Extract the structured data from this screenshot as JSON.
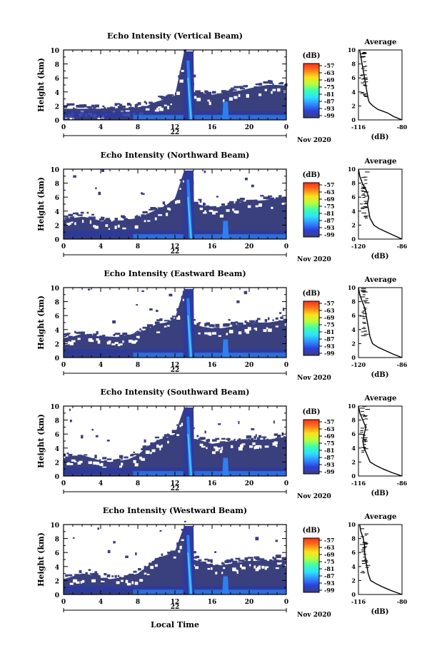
{
  "common": {
    "ylabel": "Height (km)",
    "x_ticks": [
      "0",
      "4",
      "8",
      "12",
      "16",
      "20",
      "0"
    ],
    "y_ticks": [
      "0",
      "2",
      "4",
      "6",
      "8",
      "10"
    ],
    "date_day": "22",
    "date_month_year": "Nov 2020",
    "xlabel": "Local Time",
    "colorbar_unit": "(dB)",
    "colorbar_ticks": [
      "-57",
      "-63",
      "-69",
      "-75",
      "-81",
      "-87",
      "-93",
      "-99"
    ],
    "avg_title": "Average",
    "avg_xlabel": "(dB)",
    "colors": {
      "fill": "#3a3f7e",
      "low": "#2e3a9c",
      "mid": "#2f7ff0",
      "core": "#3ad0ff",
      "colorbar": [
        "#ff2a1a",
        "#ff7a1a",
        "#ffe01a",
        "#b8ff3a",
        "#3affb0",
        "#2ee0ff",
        "#2f8cff",
        "#2d3fd8",
        "#3a3f7e"
      ]
    }
  },
  "chart_data": [
    {
      "type": "heatmap",
      "title": "Echo Intensity (Vertical Beam)",
      "x_range": [
        0,
        24
      ],
      "y_range": [
        0,
        10
      ],
      "colorbar_range": [
        -99,
        -57
      ],
      "echo_top_km": [
        1.6,
        1.6,
        1.6,
        1.6,
        1.6,
        1.6,
        1.7,
        1.7,
        1.8,
        2.0,
        2.6,
        3.0,
        3.5,
        9.8,
        4.0,
        3.8,
        3.6,
        3.8,
        4.0,
        4.2,
        4.5,
        4.8,
        5.0,
        5.0,
        4.9
      ],
      "avg_profile": {
        "xticks": [
          "-116",
          "-80"
        ],
        "x_range": [
          -116,
          -80
        ],
        "heights_km": [
          0,
          0.5,
          1,
          1.5,
          2,
          2.5,
          3,
          4,
          5,
          6,
          7,
          8,
          9,
          10
        ],
        "values_db": [
          -80,
          -87,
          -92,
          -100,
          -104,
          -107,
          -108,
          -109,
          -110,
          -111,
          -112,
          -113,
          -114,
          -115
        ]
      }
    },
    {
      "type": "heatmap",
      "title": "Echo Intensity (Northward Beam)",
      "x_range": [
        0,
        24
      ],
      "y_range": [
        0,
        10
      ],
      "colorbar_range": [
        -99,
        -57
      ],
      "echo_top_km": [
        2.8,
        3.0,
        3.2,
        3.0,
        2.6,
        2.5,
        2.6,
        2.8,
        3.0,
        3.6,
        4.2,
        4.8,
        5.8,
        9.8,
        5.2,
        4.8,
        4.5,
        4.6,
        5.0,
        5.2,
        5.5,
        5.5,
        5.6,
        5.8,
        6.0
      ],
      "avg_profile": {
        "xticks": [
          "-120",
          "-86"
        ],
        "x_range": [
          -120,
          -86
        ],
        "heights_km": [
          0,
          0.5,
          1,
          1.5,
          2,
          3,
          4,
          5,
          6,
          7,
          8,
          9,
          10
        ],
        "values_db": [
          -86,
          -92,
          -98,
          -104,
          -108,
          -111,
          -112,
          -113,
          -112,
          -114,
          -117,
          -119,
          -120
        ]
      }
    },
    {
      "type": "heatmap",
      "title": "Echo Intensity (Eastward Beam)",
      "x_range": [
        0,
        24
      ],
      "y_range": [
        0,
        10
      ],
      "colorbar_range": [
        -99,
        -57
      ],
      "echo_top_km": [
        2.8,
        3.0,
        3.4,
        3.2,
        3.0,
        2.8,
        3.0,
        3.2,
        3.6,
        4.0,
        4.8,
        5.0,
        5.6,
        9.8,
        4.8,
        4.4,
        4.2,
        4.2,
        4.4,
        4.6,
        4.8,
        5.0,
        5.0,
        5.2,
        5.4
      ],
      "avg_profile": {
        "xticks": [
          "-120",
          "-86"
        ],
        "x_range": [
          -120,
          -86
        ],
        "heights_km": [
          0,
          0.5,
          1,
          1.5,
          2,
          3,
          4,
          5,
          6,
          7,
          8,
          9,
          10
        ],
        "values_db": [
          -86,
          -93,
          -99,
          -105,
          -109,
          -111,
          -112,
          -113,
          -114,
          -115,
          -117,
          -119,
          -120
        ]
      }
    },
    {
      "type": "heatmap",
      "title": "Echo Intensity (Southward Beam)",
      "x_range": [
        0,
        24
      ],
      "y_range": [
        0,
        10
      ],
      "colorbar_range": [
        -99,
        -57
      ],
      "echo_top_km": [
        2.5,
        2.8,
        3.0,
        2.6,
        2.2,
        2.0,
        2.2,
        2.4,
        3.0,
        4.2,
        5.0,
        5.4,
        6.0,
        9.8,
        5.4,
        5.0,
        4.6,
        4.8,
        5.0,
        5.0,
        5.2,
        5.2,
        5.2,
        5.4,
        5.6
      ],
      "avg_profile": {
        "xticks": [
          "-116",
          "-86"
        ],
        "x_range": [
          -116,
          -86
        ],
        "heights_km": [
          0,
          0.5,
          1,
          1.5,
          2,
          3,
          4,
          5,
          6,
          7,
          8,
          9,
          10
        ],
        "values_db": [
          -86,
          -93,
          -99,
          -104,
          -108,
          -110,
          -112,
          -113,
          -112,
          -111,
          -113,
          -115,
          -116
        ]
      }
    },
    {
      "type": "heatmap",
      "title": "Echo Intensity (Westward Beam)",
      "x_range": [
        0,
        24
      ],
      "y_range": [
        0,
        10
      ],
      "colorbar_range": [
        -99,
        -57
      ],
      "echo_top_km": [
        2.2,
        2.6,
        3.0,
        2.8,
        2.4,
        2.2,
        2.4,
        2.6,
        3.0,
        4.0,
        5.2,
        5.6,
        6.2,
        9.8,
        5.0,
        4.6,
        4.2,
        4.2,
        4.4,
        4.6,
        4.8,
        4.8,
        4.8,
        5.0,
        4.8
      ],
      "avg_profile": {
        "xticks": [
          "-116",
          "-80"
        ],
        "x_range": [
          -116,
          -80
        ],
        "heights_km": [
          0,
          0.5,
          1,
          1.5,
          2,
          3,
          4,
          5,
          6,
          7,
          8,
          9,
          10
        ],
        "values_db": [
          -80,
          -88,
          -95,
          -101,
          -106,
          -108,
          -109,
          -110,
          -111,
          -111,
          -112,
          -114,
          -115
        ]
      }
    }
  ]
}
